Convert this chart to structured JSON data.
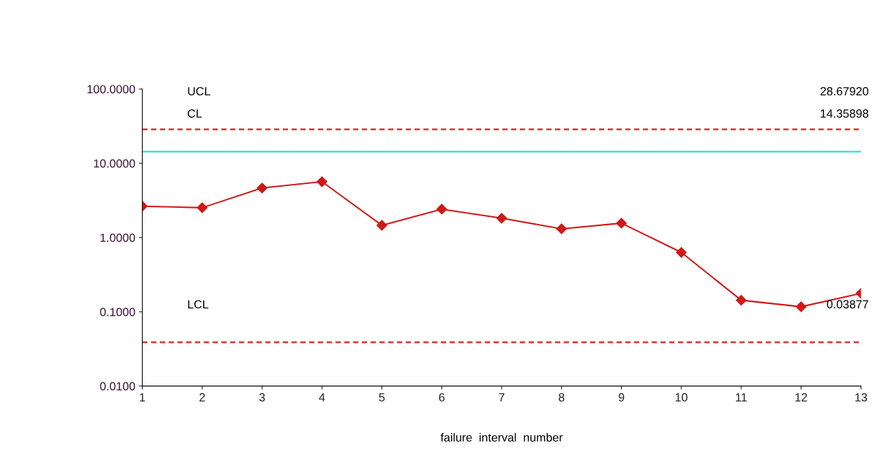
{
  "chart_data": {
    "type": "line",
    "xlabel": "failure  interval  number",
    "x": [
      1,
      2,
      3,
      4,
      5,
      6,
      7,
      8,
      9,
      10,
      11,
      12,
      13
    ],
    "series": [
      {
        "color": "#d01818",
        "values": [
          2.64,
          2.52,
          4.64,
          5.65,
          1.46,
          2.41,
          1.82,
          1.31,
          1.56,
          0.63,
          0.143,
          0.117,
          0.177
        ]
      }
    ],
    "marker": "diamond",
    "line_style": "solid",
    "log": true,
    "grid": false,
    "legend": false,
    "xlim": [
      1,
      13
    ],
    "xticks": [
      1,
      2,
      3,
      4,
      5,
      6,
      7,
      8,
      9,
      10,
      11,
      12,
      13
    ],
    "ylim": [
      0.01,
      100
    ],
    "yticks": [
      {
        "value": 100,
        "label": "100.0000"
      },
      {
        "value": 10,
        "label": "10.0000"
      },
      {
        "value": 1,
        "label": "1.0000"
      },
      {
        "value": 0.1,
        "label": "0.1000"
      },
      {
        "value": 0.01,
        "label": "0.0100"
      }
    ],
    "ref_lines": [
      {
        "axis": "y",
        "value": 28.6792,
        "label": "UCL",
        "color": "#e03030",
        "line_style": "dashed"
      },
      {
        "axis": "y",
        "value": 14.35898,
        "label": "CL",
        "color": "#40e0e0",
        "line_style": "solid"
      },
      {
        "axis": "y",
        "value": 0.03877,
        "label": "LCL",
        "color": "#e03030",
        "line_style": "dashed"
      }
    ],
    "annotations": [
      "28.67920",
      "14.35898",
      "0.03877"
    ]
  }
}
